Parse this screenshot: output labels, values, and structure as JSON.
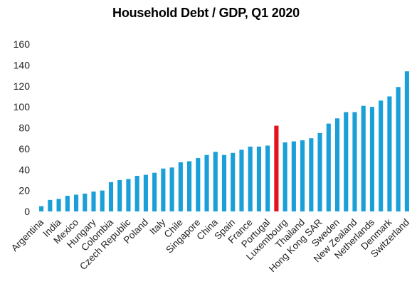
{
  "chart_data": {
    "type": "bar",
    "title": "Household Debt / GDP, Q1 2020",
    "xlabel": "",
    "ylabel": "",
    "ylim": [
      0,
      160
    ],
    "yticks": [
      0,
      20,
      40,
      60,
      80,
      100,
      120,
      140,
      160
    ],
    "grid": false,
    "legend": "none",
    "bar_color": "#1a9fd8",
    "highlight_color": "#e3121b",
    "highlight_index": 27,
    "tick_labels": [
      {
        "label": "Argentina",
        "index": 1
      },
      {
        "label": "India",
        "index": 3
      },
      {
        "label": "Mexico",
        "index": 5
      },
      {
        "label": "Hungary",
        "index": 7
      },
      {
        "label": "Colombia",
        "index": 9
      },
      {
        "label": "Czech Republic",
        "index": 11
      },
      {
        "label": "Poland",
        "index": 13
      },
      {
        "label": "Italy",
        "index": 15
      },
      {
        "label": "Chile",
        "index": 17
      },
      {
        "label": "Singapore",
        "index": 19
      },
      {
        "label": "China",
        "index": 21
      },
      {
        "label": "Spain",
        "index": 23
      },
      {
        "label": "France",
        "index": 25
      },
      {
        "label": "Portugal",
        "index": 27
      },
      {
        "label": "Luxembourg",
        "index": 29
      },
      {
        "label": "Thailand",
        "index": 31
      },
      {
        "label": "Hong Kong SAR",
        "index": 33
      },
      {
        "label": "Sweden",
        "index": 35
      },
      {
        "label": "New Zealand",
        "index": 37
      },
      {
        "label": "Netherlands",
        "index": 39
      },
      {
        "label": "Denmark",
        "index": 41
      },
      {
        "label": "Switzerland",
        "index": 43
      }
    ],
    "values": [
      5,
      11,
      12,
      15,
      16,
      17,
      19,
      20,
      28,
      30,
      31,
      34,
      35,
      37,
      41,
      42,
      47,
      48,
      51,
      54,
      57,
      54,
      56,
      59,
      62,
      62,
      63,
      82,
      66,
      67,
      68,
      70,
      75,
      84,
      89,
      95,
      95,
      101,
      100,
      106,
      110,
      119,
      134
    ]
  }
}
